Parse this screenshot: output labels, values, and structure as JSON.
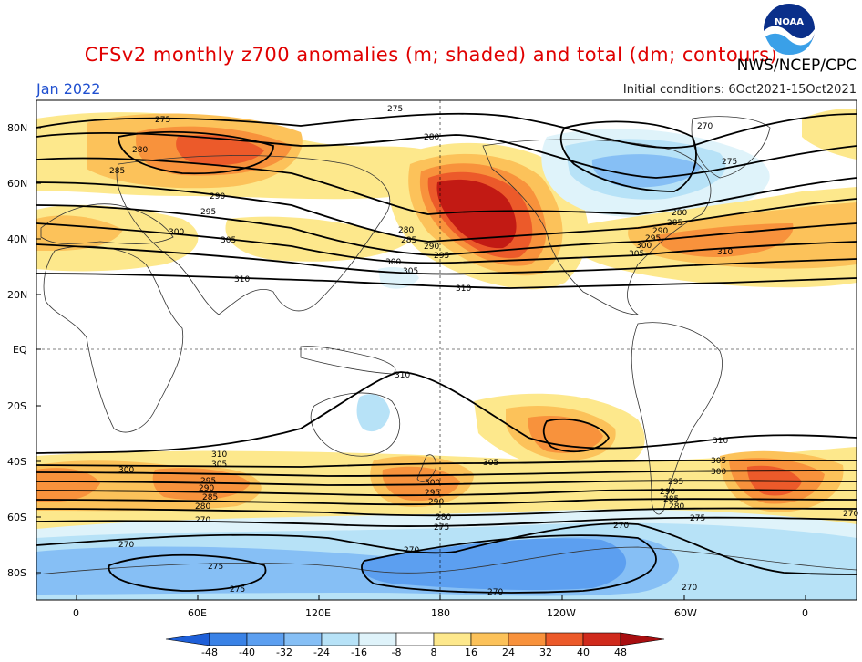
{
  "title": "CFSv2 monthly z700 anomalies (m; shaded) and total (dm; contours)",
  "month": "Jan 2022",
  "agency": "NWS/NCEP/CPC",
  "initial_conditions": "Initial conditions: 6Oct2021-15Oct2021",
  "logo_text": "NOAA",
  "lat_labels": [
    "80N",
    "60N",
    "40N",
    "20N",
    "EQ",
    "20S",
    "40S",
    "60S",
    "80S"
  ],
  "lon_labels": [
    "0",
    "60E",
    "120E",
    "180",
    "120W",
    "60W",
    "0"
  ],
  "colorbar": {
    "levels": [
      "-48",
      "-40",
      "-32",
      "-24",
      "-16",
      "-8",
      "8",
      "16",
      "24",
      "32",
      "40",
      "48"
    ],
    "colors": [
      "#1e5fd8",
      "#3a82e6",
      "#5c9ff0",
      "#86bff5",
      "#b7e2f7",
      "#dff3fa",
      "#ffffff",
      "#fde88c",
      "#fcc25a",
      "#f8923c",
      "#ec5a2a",
      "#d02a1c",
      "#a80e10"
    ]
  },
  "contour_labels": [
    "275",
    "270",
    "280",
    "285",
    "290",
    "295",
    "300",
    "305",
    "310"
  ],
  "anomaly_colors": {
    "positive_light": "#fde88c",
    "positive_mid": "#fcc25a",
    "positive_strong": "#f8923c",
    "positive_very": "#ec5a2a",
    "positive_max": "#c21a14",
    "negative_light": "#b7e2f7",
    "negative_mid": "#86bff5",
    "negative_strong": "#5c9ff0"
  }
}
